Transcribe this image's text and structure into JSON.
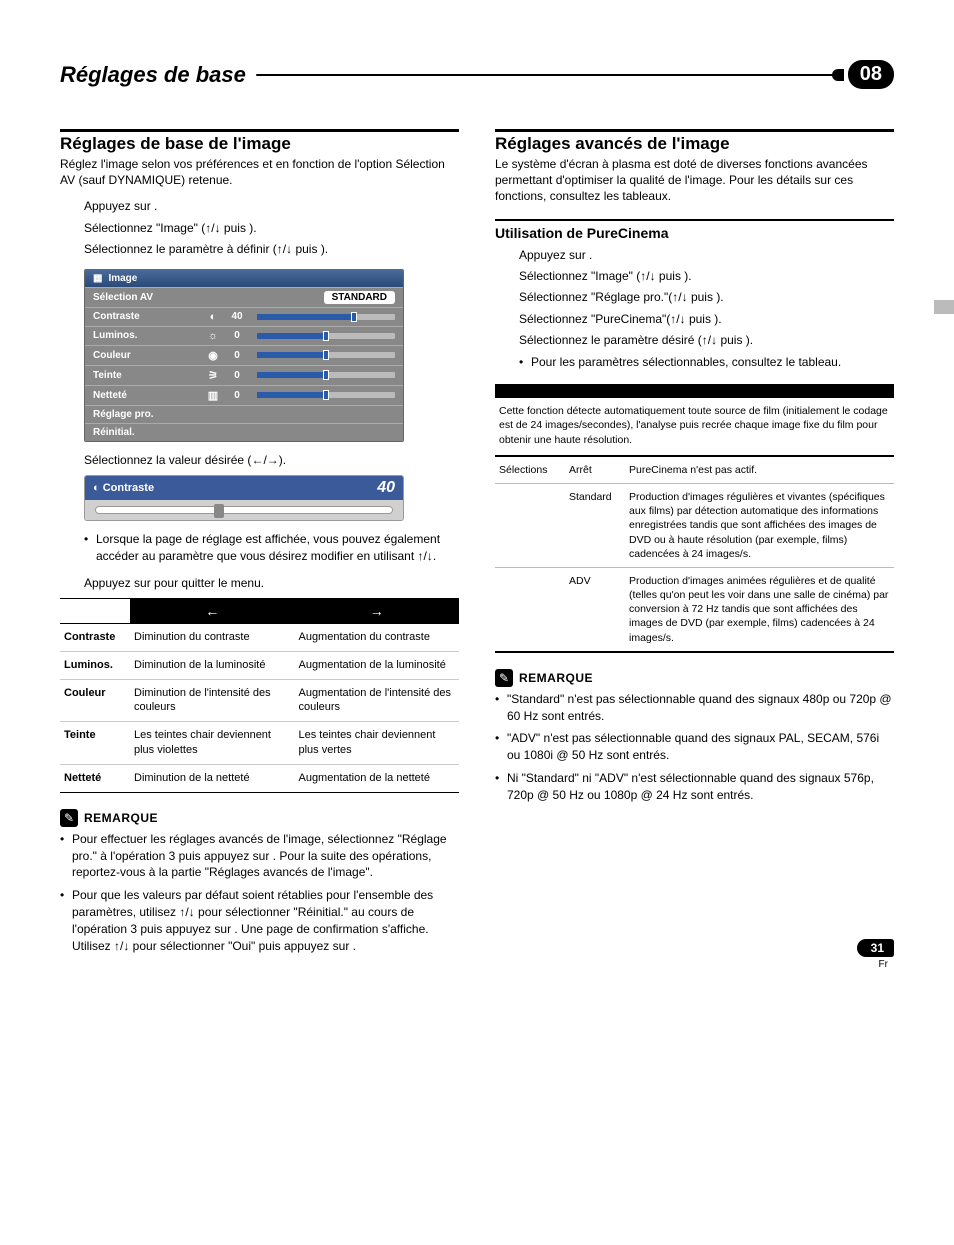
{
  "chapter": {
    "title": "Réglages de base",
    "number": "08"
  },
  "left": {
    "heading": "Réglages de base de l'image",
    "intro": "Réglez l'image selon vos préférences et en fonction de l'option Sélection AV (sauf DYNAMIQUE) retenue.",
    "steps": {
      "s1": "Appuyez sur ",
      "s1b": ".",
      "s2a": "Sélectionnez \"Image\" (",
      "s2arrows": "↑/↓",
      "s2b": " puis ",
      "s2c": ").",
      "s3a": "Sélectionnez le paramètre à définir (",
      "s3arrows": "↑/↓",
      "s3b": " puis ",
      "s3c": ").",
      "s4a": "Sélectionnez la valeur désirée (",
      "s4arrows": "←/→",
      "s4b": ").",
      "s5a": "Appuyez sur ",
      "s5b": " pour quitter le menu."
    },
    "osd": {
      "title": "Image",
      "rows": [
        {
          "label": "Sélection AV",
          "type": "pill",
          "pill": "STANDARD"
        },
        {
          "label": "Contraste",
          "icon": "◐",
          "value": "40",
          "fill": 70
        },
        {
          "label": "Luminos.",
          "icon": "☼",
          "value": "0",
          "fill": 50
        },
        {
          "label": "Couleur",
          "icon": "◉",
          "value": "0",
          "fill": 50
        },
        {
          "label": "Teinte",
          "icon": "⚞",
          "value": "0",
          "fill": 50
        },
        {
          "label": "Netteté",
          "icon": "▥",
          "value": "0",
          "fill": 50
        },
        {
          "label": "Réglage pro.",
          "type": "plain"
        },
        {
          "label": "Réinitial.",
          "type": "plain"
        }
      ]
    },
    "contrast": {
      "label": "Contraste",
      "value": "40"
    },
    "bullet1a": "Lorsque la page de réglage est affichée, vous pouvez également accéder au paramètre que vous désirez modifier en utilisant ",
    "bullet1arrows": "↑/↓",
    "bullet1b": ".",
    "arrowtable": {
      "left": "←",
      "right": "→",
      "rows": [
        {
          "h": "Contraste",
          "l": "Diminution du contraste",
          "r": "Augmentation du contraste"
        },
        {
          "h": "Luminos.",
          "l": "Diminution de la luminosité",
          "r": "Augmentation de la luminosité"
        },
        {
          "h": "Couleur",
          "l": "Diminution de l'intensité des couleurs",
          "r": "Augmentation de l'intensité des couleurs"
        },
        {
          "h": "Teinte",
          "l": "Les teintes chair deviennent plus violettes",
          "r": "Les teintes chair deviennent plus vertes"
        },
        {
          "h": "Netteté",
          "l": "Diminution de la netteté",
          "r": "Augmentation de la netteté"
        }
      ]
    },
    "remarque_label": "REMARQUE",
    "notes": [
      "Pour effectuer les réglages avancés de l'image, sélectionnez \"Réglage pro.\" à l'opération 3 puis appuyez sur           . Pour la suite des opérations, reportez-vous à la partie \"Réglages avancés de l'image\".",
      "Pour que les valeurs par défaut soient rétablies pour l'ensemble des paramètres, utilisez ↑/↓ pour sélectionner \"Réinitial.\" au cours de l'opération 3 puis appuyez sur           . Une page de confirmation s'affiche. Utilisez ↑/↓ pour sélectionner \"Oui\" puis appuyez sur           ."
    ]
  },
  "right": {
    "heading": "Réglages avancés de l'image",
    "intro": "Le système d'écran à plasma est doté de diverses fonctions avancées permettant d'optimiser la qualité de l'image. Pour les détails sur ces fonctions, consultez les tableaux.",
    "h3": "Utilisation de PureCinema",
    "steps": {
      "s1": "Appuyez sur ",
      "s1b": ".",
      "s2a": "Sélectionnez \"Image\" (",
      "s2arrows": "↑/↓",
      "s2b": " puis ",
      "s2c": ").",
      "s3a": "Sélectionnez \"Réglage pro.\"(",
      "s3arrows": "↑/↓",
      "s3b": " puis ",
      "s3c": ").",
      "s4a": "Sélectionnez \"PureCinema\"(",
      "s4arrows": "↑/↓",
      "s4b": " puis ",
      "s4c": ").",
      "s5a": "Sélectionnez le paramètre désiré (",
      "s5arrows": "↑/↓",
      "s5b": " puis ",
      "s5c": ")."
    },
    "bullet": "Pour les paramètres sélectionnables, consultez le tableau.",
    "pc_desc": "Cette fonction détecte automatiquement toute source de film (initialement le codage est de 24 images/secondes), l'analyse puis recrée chaque image fixe du film pour obtenir une haute résolution.",
    "pc_table": {
      "c1": "Sélections",
      "rows": [
        {
          "a": "Arrêt",
          "b": "PureCinema n'est pas actif."
        },
        {
          "a": "Standard",
          "b": "Production d'images régulières et vivantes (spécifiques aux films) par détection automatique des informations enregistrées tandis que sont affichées des images de DVD ou à haute résolution (par exemple, films) cadencées à 24 images/s."
        },
        {
          "a": "ADV",
          "b": "Production d'images animées régulières et de qualité (telles qu'on peut les voir dans une salle de cinéma) par conversion à 72 Hz tandis que sont affichées des images de DVD (par exemple, films) cadencées à 24 images/s."
        }
      ]
    },
    "remarque_label": "REMARQUE",
    "notes": [
      "\"Standard\" n'est pas sélectionnable quand des signaux 480p ou 720p @ 60 Hz sont entrés.",
      "\"ADV\" n'est pas sélectionnable quand des signaux PAL, SECAM, 576i ou 1080i @ 50 Hz sont entrés.",
      "Ni \"Standard\" ni \"ADV\" n'est sélectionnable quand des signaux 576p, 720p @ 50 Hz ou 1080p @ 24 Hz sont entrés."
    ]
  },
  "footer": {
    "page": "31",
    "lang": "Fr"
  },
  "colors": {
    "accent": "#3a5a9a"
  }
}
